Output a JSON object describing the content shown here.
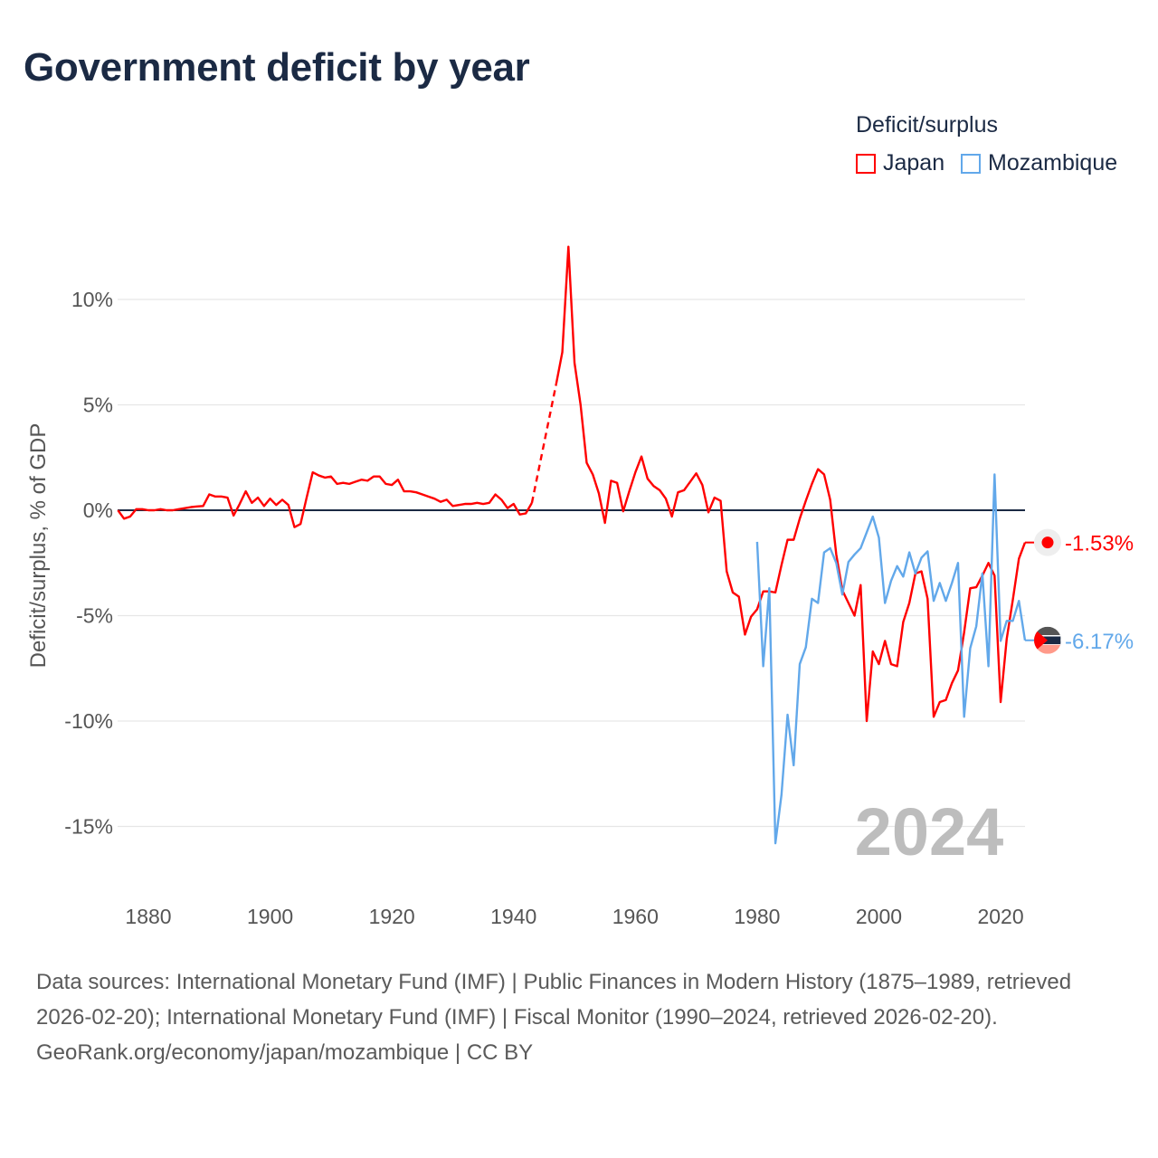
{
  "title": "Government deficit by year",
  "legend": {
    "title": "Deficit/surplus",
    "items": [
      {
        "label": "Japan",
        "color": "#ff0000"
      },
      {
        "label": "Mozambique",
        "color": "#62a8ea"
      }
    ]
  },
  "footer": {
    "line1": "Data sources: International Monetary Fund (IMF) | Public Finances in Modern History (1875–1989, retrieved 2026-02-20); International Monetary Fund (IMF) | Fiscal Monitor (1990–2024, retrieved 2026-02-20).",
    "line2": "GeoRank.org/economy/japan/mozambique | CC BY"
  },
  "chart_data": {
    "type": "line",
    "title": "Government deficit by year",
    "xlabel": "",
    "ylabel": "Deficit/surplus, % of GDP",
    "xlim": [
      1875,
      2024
    ],
    "ylim": [
      -17,
      13
    ],
    "x_ticks": [
      1880,
      1900,
      1920,
      1940,
      1960,
      1980,
      2000,
      2020
    ],
    "y_ticks": [
      10,
      5,
      0,
      -5,
      -10,
      -15
    ],
    "y_tick_labels": [
      "10%",
      "5%",
      "0%",
      "-5%",
      "-10%",
      "-15%"
    ],
    "current_year_label": "2024",
    "grid": true,
    "legend_position": "top-right",
    "series": [
      {
        "name": "Japan",
        "color": "#ff0000",
        "end_label": "-1.53%",
        "gap_years": [
          1944,
          1945,
          1946
        ],
        "start_year": 1875,
        "values": [
          0,
          -0.4,
          -0.3,
          0.05,
          0.05,
          0,
          0,
          0.05,
          0,
          0,
          0.05,
          0.1,
          0.15,
          0.18,
          0.2,
          0.75,
          0.65,
          0.65,
          0.6,
          -0.25,
          0.3,
          0.9,
          0.35,
          0.6,
          0.2,
          0.55,
          0.25,
          0.5,
          0.25,
          -0.8,
          -0.65,
          0.6,
          1.8,
          1.65,
          1.55,
          1.6,
          1.25,
          1.3,
          1.25,
          1.35,
          1.45,
          1.4,
          1.6,
          1.6,
          1.25,
          1.2,
          1.45,
          0.9,
          0.9,
          0.85,
          0.75,
          0.65,
          0.55,
          0.4,
          0.5,
          0.2,
          0.25,
          0.3,
          0.3,
          0.35,
          0.3,
          0.35,
          0.75,
          0.5,
          0.1,
          0.3,
          -0.2,
          -0.15,
          0.35,
          null,
          null,
          null,
          6.0,
          7.5,
          12.5,
          7.0,
          5.0,
          2.25,
          1.7,
          0.8,
          -0.6,
          1.4,
          1.3,
          -0.05,
          0.9,
          1.8,
          2.55,
          1.5,
          1.15,
          0.95,
          0.55,
          -0.3,
          0.85,
          0.95,
          1.35,
          1.75,
          1.2,
          -0.1,
          0.6,
          0.45,
          -2.9,
          -3.9,
          -4.1,
          -5.9,
          -5.05,
          -4.7,
          -3.85,
          -3.85,
          -3.9,
          -2.6,
          -1.4,
          -1.4,
          -0.4,
          0.45,
          1.25,
          1.95,
          1.7,
          0.5,
          -2.1,
          -3.8,
          -4.4,
          -5.0,
          -3.55,
          -10.0,
          -6.7,
          -7.3,
          -6.2,
          -7.3,
          -7.4,
          -5.3,
          -4.4,
          -3.0,
          -2.9,
          -4.2,
          -9.8,
          -9.1,
          -9.0,
          -8.2,
          -7.6,
          -5.8,
          -3.7,
          -3.65,
          -3.1,
          -2.5,
          -3.1,
          -9.1,
          -6.1,
          -4.25,
          -2.3,
          -1.53
        ]
      },
      {
        "name": "Mozambique",
        "color": "#62a8ea",
        "end_label": "-6.17%",
        "start_year": 1980,
        "values": [
          -1.5,
          -7.4,
          -3.7,
          -15.8,
          -13.5,
          -9.7,
          -12.1,
          -7.3,
          -6.5,
          -4.2,
          -4.4,
          -2.0,
          -1.8,
          -2.5,
          -4.0,
          -2.45,
          -2.1,
          -1.8,
          -1.05,
          -0.3,
          -1.3,
          -4.4,
          -3.35,
          -2.65,
          -3.15,
          -2.0,
          -3.0,
          -2.25,
          -1.95,
          -4.3,
          -3.45,
          -4.3,
          -3.45,
          -2.5,
          -9.8,
          -6.55,
          -5.5,
          -3.0,
          -7.4,
          1.7,
          -6.2,
          -5.25,
          -5.25,
          -4.3,
          -6.17
        ]
      }
    ]
  }
}
